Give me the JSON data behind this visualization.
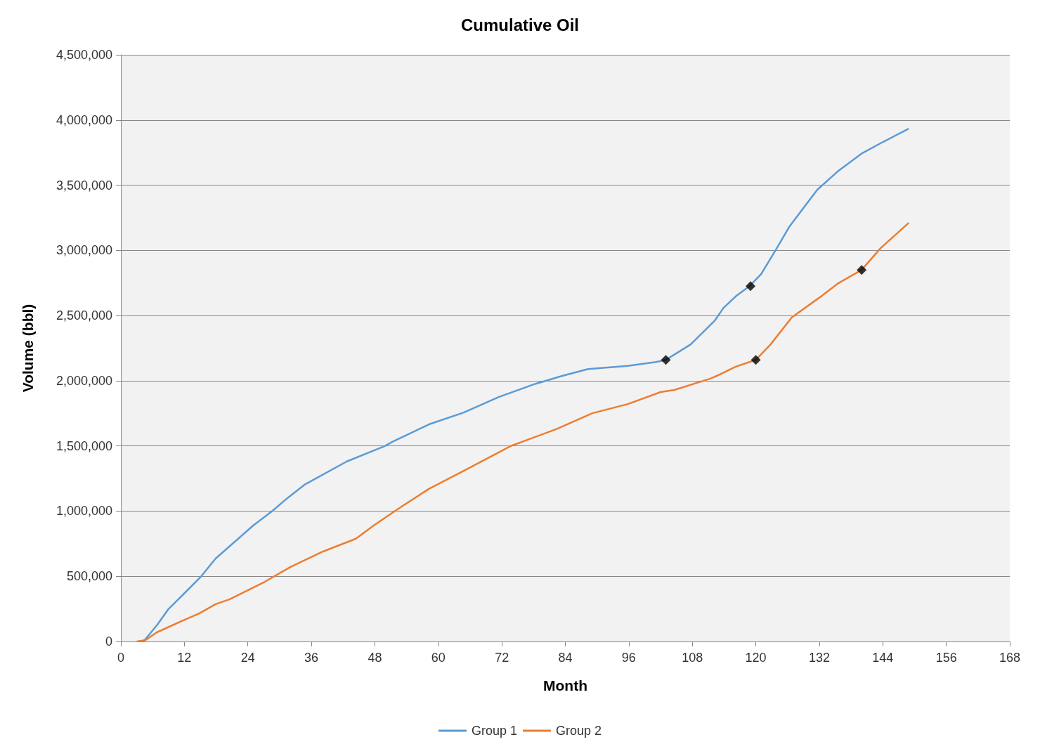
{
  "chart_data": {
    "type": "line",
    "title": "Cumulative Oil",
    "xlabel": "Month",
    "ylabel": "Volume (bbl)",
    "xlim": [
      0,
      168
    ],
    "xticks": [
      0,
      12,
      24,
      36,
      48,
      60,
      72,
      84,
      96,
      108,
      120,
      132,
      144,
      156,
      168
    ],
    "ylim": [
      0,
      4500000
    ],
    "yticks": [
      0,
      {
        "value": 500000,
        "label": "500,000"
      },
      {
        "value": 1000000,
        "label": "1,000,000"
      },
      {
        "value": 1500000,
        "label": "1,500,000"
      },
      {
        "value": 2000000,
        "label": "2,000,000"
      },
      {
        "value": 2500000,
        "label": "2,500,000"
      },
      {
        "value": 3000000,
        "label": "3,000,000"
      },
      {
        "value": 3500000,
        "label": "3,500,000"
      },
      {
        "value": 4000000,
        "label": "4,000,000"
      },
      {
        "value": 4500000,
        "label": "4,500,000"
      }
    ],
    "grid": "y",
    "legend": "bottom",
    "marker": "none",
    "line_style": "solid",
    "series": [
      {
        "name": "Group 1",
        "color": "#5b9bd5",
        "x": [
          4,
          4.6,
          6.8,
          9,
          11.7,
          15.2,
          17.9,
          25,
          28.5,
          31.6,
          34.7,
          42.7,
          49.8,
          51.5,
          58.2,
          64.8,
          71.4,
          78.1,
          83.4,
          88.3,
          95.8,
          101.1,
          103,
          107.7,
          112.2,
          113.9,
          116.2,
          118.8,
          121,
          123.7,
          126.3,
          131.6,
          135.6,
          140.1,
          144.1,
          148.9
        ],
        "values": [
          0,
          16000,
          124000,
          249000,
          357000,
          501000,
          636000,
          889000,
          997000,
          1104000,
          1202000,
          1381000,
          1498000,
          1535000,
          1665000,
          1756000,
          1875000,
          1973000,
          2037000,
          2090000,
          2114000,
          2144000,
          2160000,
          2279000,
          2459000,
          2559000,
          2647000,
          2725000,
          2818000,
          2998000,
          3179000,
          3464000,
          3610000,
          3745000,
          3833000,
          3933000
        ]
      },
      {
        "name": "Group 2",
        "color": "#ed7d31",
        "x": [
          3,
          4.6,
          6.8,
          11.2,
          14.8,
          17.9,
          20.5,
          27.2,
          32,
          38.2,
          44.4,
          48,
          52.9,
          58.2,
          64.8,
          73.6,
          82.5,
          89.1,
          95.8,
          102,
          104.6,
          111.3,
          112.6,
          116.2,
          120,
          122.8,
          126.8,
          132.1,
          135.6,
          140,
          143.6,
          148.9
        ],
        "values": [
          0,
          9000,
          70000,
          151000,
          215000,
          286000,
          323000,
          458000,
          571000,
          690000,
          788000,
          896000,
          1031000,
          1170000,
          1309000,
          1498000,
          1632000,
          1751000,
          1821000,
          1913000,
          1929000,
          2015000,
          2037000,
          2108000,
          2160000,
          2279000,
          2486000,
          2640000,
          2748000,
          2850000,
          3017000,
          3211000
        ]
      },
      {
        "type": "scatter",
        "marker": "diamond",
        "color": "#000000",
        "x": [
          103,
          119,
          120,
          140
        ],
        "values": [
          2160000,
          2725000,
          2160000,
          2850000
        ]
      }
    ]
  }
}
